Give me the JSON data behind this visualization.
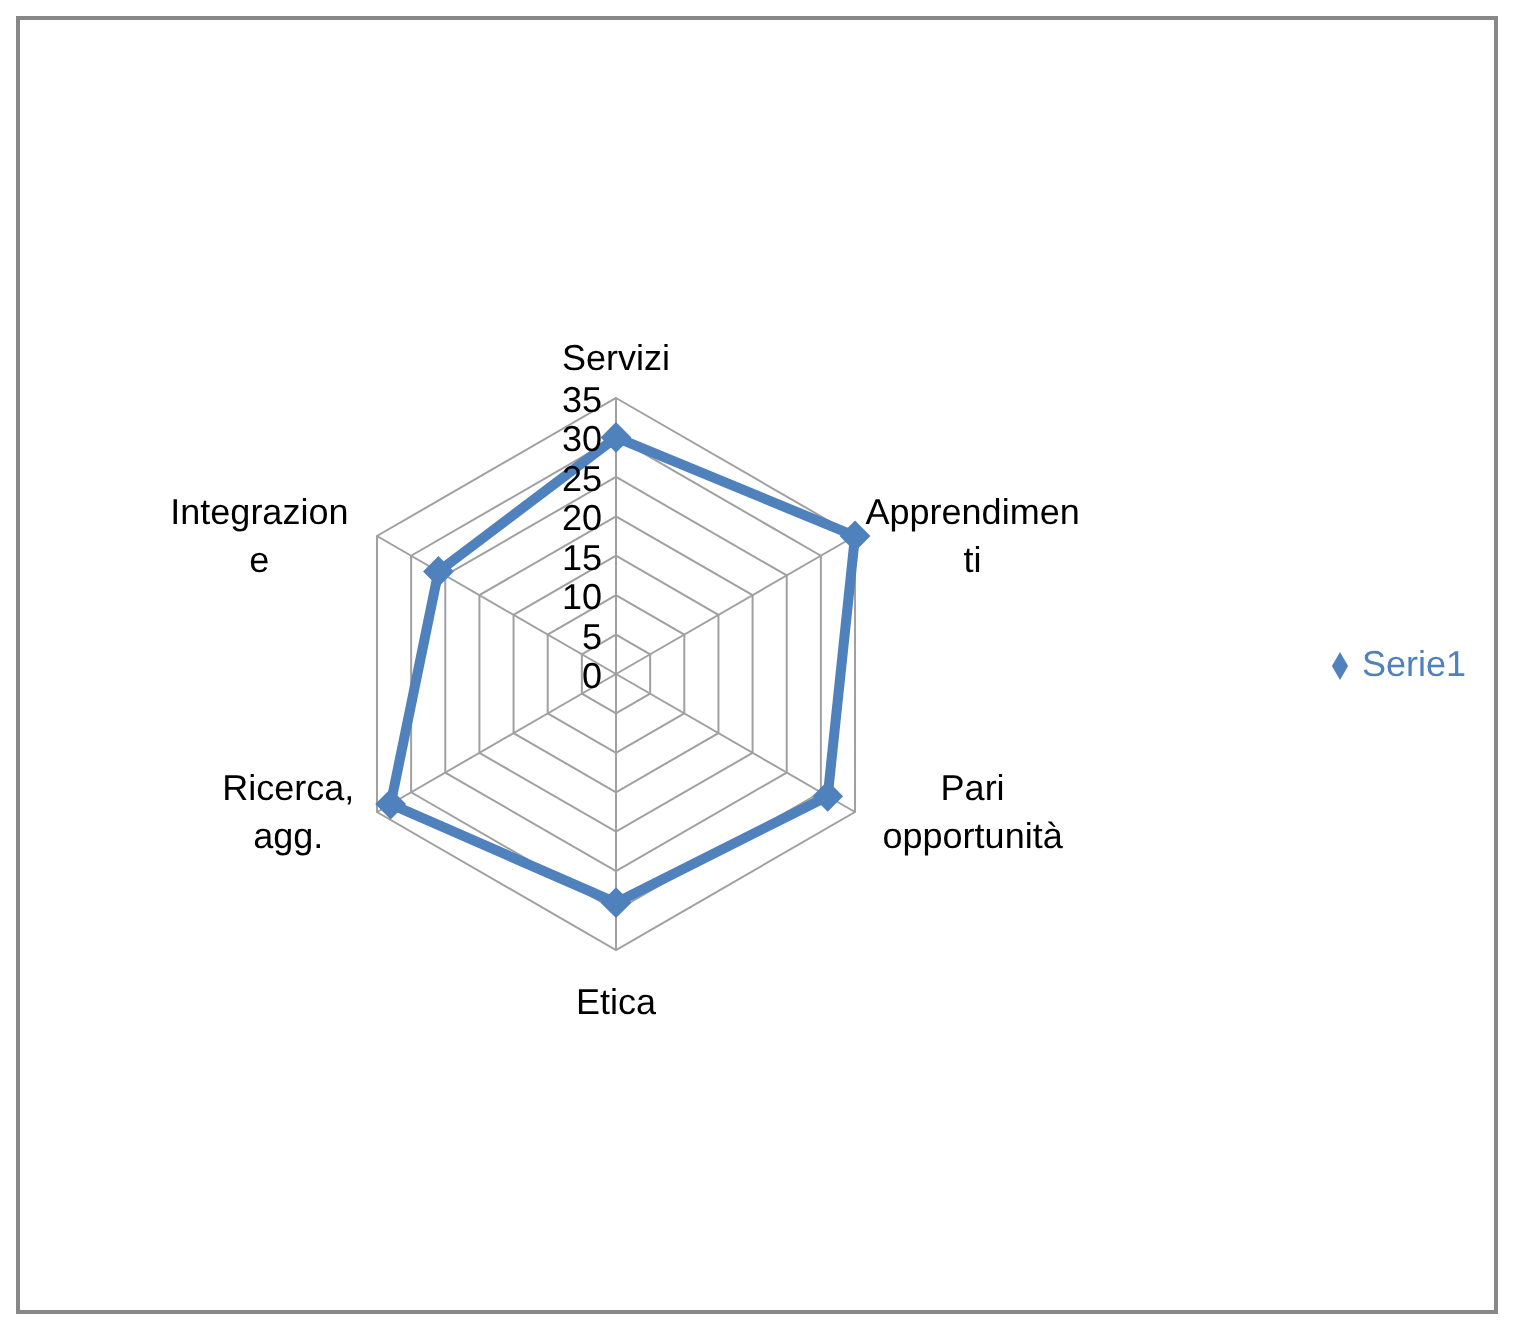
{
  "chart_data": {
    "type": "radar",
    "categories": [
      "Servizi",
      "Apprendimenti",
      "Pari opportunità",
      "Etica",
      "Ricerca, agg.",
      "Integrazione"
    ],
    "series": [
      {
        "name": "Serie1",
        "color": "#4f81bd",
        "values": [
          30,
          35,
          31,
          29,
          33,
          26
        ]
      }
    ],
    "ylim": [
      0,
      35
    ],
    "yticks": [
      0,
      5,
      10,
      15,
      20,
      25,
      30,
      35
    ],
    "grid": true,
    "legend": "right",
    "marker": "diamond",
    "line_style": "solid"
  }
}
